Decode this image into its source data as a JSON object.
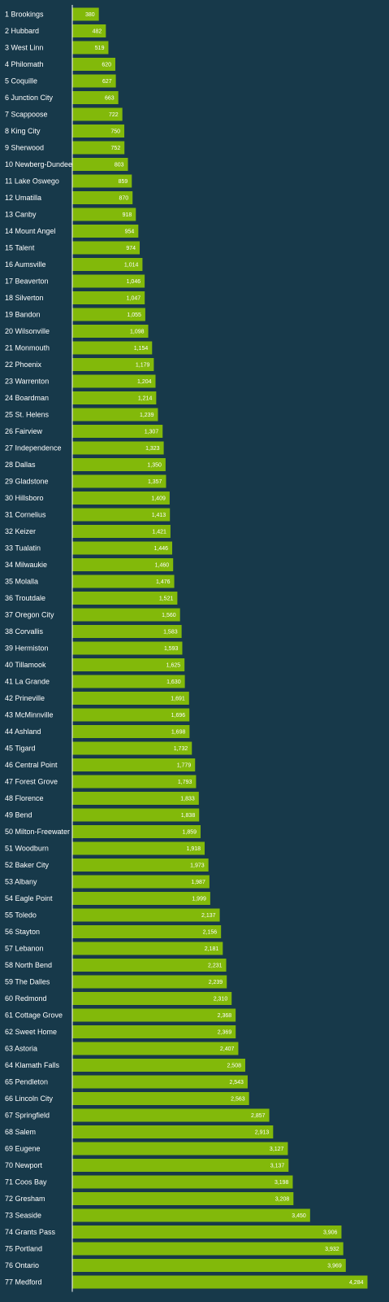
{
  "colors": {
    "background": "#17394a",
    "bar": "#82b90a",
    "axis": "#ffffff",
    "text": "#ffffff"
  },
  "chart_data": {
    "type": "bar",
    "orientation": "horizontal",
    "categories": [
      "1 Brookings",
      "2 Hubbard",
      "3 West Linn",
      "4 Philomath",
      "5 Coquille",
      "6 Junction City",
      "7 Scappoose",
      "8 King City",
      "9 Sherwood",
      "10 Newberg-Dundee",
      "11 Lake Oswego",
      "12 Umatilla",
      "13 Canby",
      "14 Mount Angel",
      "15 Talent",
      "16 Aumsville",
      "17 Beaverton",
      "18 Silverton",
      "19 Bandon",
      "20 Wilsonville",
      "21 Monmouth",
      "22 Phoenix",
      "23 Warrenton",
      "24 Boardman",
      "25 St. Helens",
      "26 Fairview",
      "27 Independence",
      "28 Dallas",
      "29 Gladstone",
      "30 Hillsboro",
      "31 Cornelius",
      "32 Keizer",
      "33 Tualatin",
      "34 Milwaukie",
      "35 Molalla",
      "36 Troutdale",
      "37 Oregon City",
      "38 Corvallis",
      "39 Hermiston",
      "40 Tillamook",
      "41 La Grande",
      "42 Prineville",
      "43 McMinnville",
      "44 Ashland",
      "45 Tigard",
      "46 Central Point",
      "47 Forest Grove",
      "48 Florence",
      "49 Bend",
      "50 Milton-Freewater",
      "51 Woodburn",
      "52 Baker City",
      "53 Albany",
      "54 Eagle Point",
      "55 Toledo",
      "56 Stayton",
      "57 Lebanon",
      "58 North Bend",
      "59 The Dalles",
      "60 Redmond",
      "61 Cottage Grove",
      "62 Sweet Home",
      "63 Astoria",
      "64 Klamath Falls",
      "65 Pendleton",
      "66 Lincoln City",
      "67 Springfield",
      "68 Salem",
      "69 Eugene",
      "70 Newport",
      "71 Coos Bay",
      "72 Gresham",
      "73 Seaside",
      "74 Grants Pass",
      "75 Portland",
      "76 Ontario",
      "77 Medford"
    ],
    "values": [
      380,
      482,
      519,
      620,
      627,
      663,
      722,
      750,
      752,
      803,
      859,
      870,
      918,
      954,
      974,
      1014,
      1046,
      1047,
      1055,
      1098,
      1154,
      1179,
      1204,
      1214,
      1239,
      1307,
      1323,
      1350,
      1357,
      1409,
      1413,
      1421,
      1446,
      1460,
      1476,
      1521,
      1560,
      1583,
      1593,
      1625,
      1630,
      1691,
      1696,
      1698,
      1732,
      1779,
      1793,
      1833,
      1838,
      1859,
      1918,
      1973,
      1987,
      1999,
      2137,
      2156,
      2181,
      2231,
      2239,
      2310,
      2368,
      2369,
      2407,
      2508,
      2543,
      2563,
      2857,
      2913,
      3127,
      3137,
      3198,
      3208,
      3450,
      3906,
      3932,
      3969,
      4284
    ],
    "value_labels": [
      "380",
      "482",
      "519",
      "620",
      "627",
      "663",
      "722",
      "750",
      "752",
      "803",
      "859",
      "870",
      "918",
      "954",
      "974",
      "1,014",
      "1,046",
      "1,047",
      "1,055",
      "1,098",
      "1,154",
      "1,179",
      "1,204",
      "1,214",
      "1,239",
      "1,307",
      "1,323",
      "1,350",
      "1,357",
      "1,409",
      "1,413",
      "1,421",
      "1,446",
      "1,460",
      "1,476",
      "1,521",
      "1,560",
      "1,583",
      "1,593",
      "1,625",
      "1,630",
      "1,691",
      "1,696",
      "1,698",
      "1,732",
      "1,779",
      "1,793",
      "1,833",
      "1,838",
      "1,859",
      "1,918",
      "1,973",
      "1,987",
      "1,999",
      "2,137",
      "2,156",
      "2,181",
      "2,231",
      "2,239",
      "2,310",
      "2,368",
      "2,369",
      "2,407",
      "2,508",
      "2,543",
      "2,563",
      "2,857",
      "2,913",
      "3,127",
      "3,137",
      "3,198",
      "3,208",
      "3,450",
      "3,906",
      "3,932",
      "3,969",
      "4,284"
    ],
    "title": "",
    "xlabel": "",
    "ylabel": "",
    "xlim": [
      0,
      4284
    ],
    "grid": false,
    "legend": "none"
  }
}
